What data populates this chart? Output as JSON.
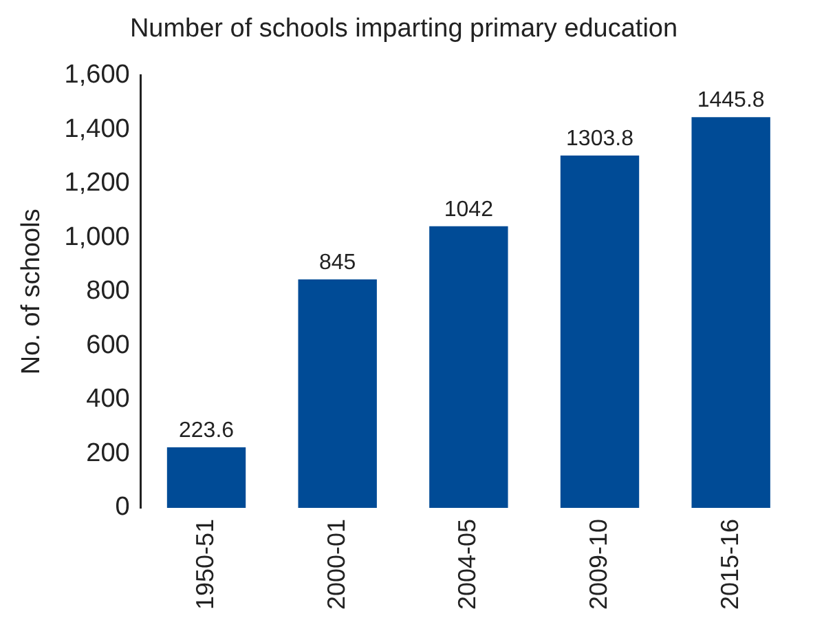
{
  "chart_data": {
    "type": "bar",
    "title": "Number of schools imparting primary education",
    "ylabel": "No. of schools",
    "categories": [
      "1950-51",
      "2000-01",
      "2004-05",
      "2009-10",
      "2015-16"
    ],
    "values": [
      223.6,
      845,
      1042,
      1303.8,
      1445.8
    ],
    "color": "#004b96",
    "ylim": [
      0,
      1600
    ],
    "yticks": [
      {
        "value": 0,
        "label": "0"
      },
      {
        "value": 200,
        "label": "200"
      },
      {
        "value": 400,
        "label": "400"
      },
      {
        "value": 600,
        "label": "600"
      },
      {
        "value": 800,
        "label": "800"
      },
      {
        "value": 1000,
        "label": "1,000"
      },
      {
        "value": 1200,
        "label": "1,200"
      },
      {
        "value": 1400,
        "label": "1,400"
      },
      {
        "value": 1600,
        "label": "1,600"
      }
    ],
    "grid": false,
    "legend": false,
    "data_labels": true
  }
}
